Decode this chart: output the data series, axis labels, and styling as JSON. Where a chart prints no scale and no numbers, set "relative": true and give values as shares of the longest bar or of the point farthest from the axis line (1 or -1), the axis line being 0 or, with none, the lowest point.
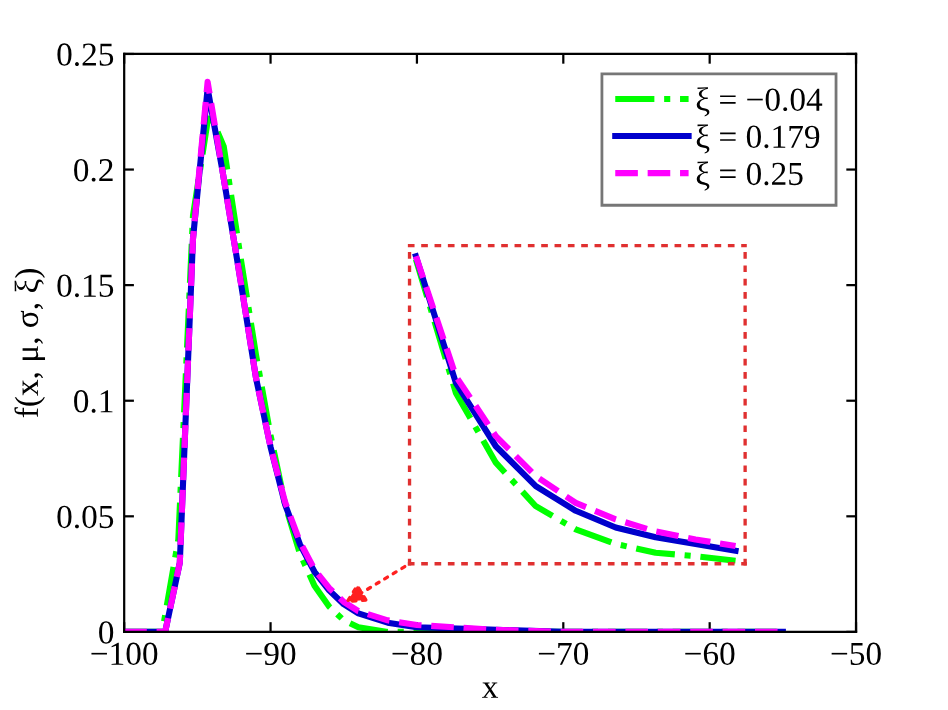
{
  "chart_data": [
    {
      "type": "line",
      "xlabel": "x",
      "ylabel": "f(x, μ, σ, ξ)",
      "xlim": [
        -100,
        -50
      ],
      "xticks": [
        -100,
        -90,
        -80,
        -70,
        -60,
        -50
      ],
      "ylim": [
        0,
        0.25
      ],
      "yticks": [
        0,
        0.05,
        0.1,
        0.15,
        0.2,
        0.25
      ],
      "grid": false,
      "legend": "top right",
      "marker": "none",
      "series": [
        {
          "name": "ξ = −0.04",
          "color": "#00ff00",
          "line_style": "dashdot",
          "x": [
            -100,
            -97.4,
            -96.3,
            -95.3,
            -94.2,
            -93.2,
            -92,
            -91,
            -90,
            -89,
            -88,
            -87,
            -86,
            -85,
            -84,
            -82,
            -80,
            -70,
            -55
          ],
          "values": [
            0,
            0,
            0.04,
            0.18,
            0.225,
            0.21,
            0.16,
            0.12,
            0.085,
            0.055,
            0.034,
            0.02,
            0.011,
            0.005,
            0.002,
            0,
            0,
            0,
            0
          ]
        },
        {
          "name": "ξ = 0.179",
          "color": "#0000cc",
          "line_style": "solid",
          "x": [
            -100,
            -97.2,
            -96.2,
            -95.3,
            -94.3,
            -93.3,
            -92,
            -91,
            -90,
            -89,
            -88,
            -87,
            -86,
            -85,
            -84,
            -82,
            -80,
            -75,
            -70,
            -55
          ],
          "values": [
            0,
            0,
            0.03,
            0.17,
            0.235,
            0.2,
            0.15,
            0.11,
            0.08,
            0.055,
            0.038,
            0.026,
            0.018,
            0.012,
            0.008,
            0.004,
            0.002,
            0.001,
            0,
            0
          ]
        },
        {
          "name": "ξ = 0.25",
          "color": "#ff00ff",
          "line_style": "dashed",
          "x": [
            -100,
            -97.2,
            -96.2,
            -95.3,
            -94.3,
            -93.3,
            -92,
            -91,
            -90,
            -89,
            -88,
            -87,
            -86,
            -85,
            -84,
            -82,
            -80,
            -75,
            -70,
            -55
          ],
          "values": [
            0,
            0,
            0.03,
            0.17,
            0.238,
            0.2,
            0.15,
            0.11,
            0.08,
            0.056,
            0.039,
            0.027,
            0.019,
            0.013,
            0.009,
            0.005,
            0.003,
            0.001,
            0,
            0
          ]
        }
      ]
    },
    {
      "type": "line",
      "relative": true,
      "legend": false,
      "categories": [
        null,
        null,
        null,
        null,
        null,
        null,
        null,
        null,
        null
      ],
      "series": [
        {
          "color": "#00ff00",
          "line_style": "dashdot",
          "values": [
            0.99,
            0.551,
            0.322,
            0.179,
            0.103,
            0.055,
            0.026,
            0.015,
            0
          ]
        },
        {
          "color": "#0000cc",
          "line_style": "solid",
          "values": [
            1,
            0.584,
            0.376,
            0.245,
            0.164,
            0.109,
            0.077,
            0.055,
            0.033
          ]
        },
        {
          "color": "#ff00ff",
          "line_style": "dashed",
          "values": [
            1,
            0.606,
            0.409,
            0.278,
            0.19,
            0.136,
            0.096,
            0.07,
            0.048
          ]
        }
      ]
    }
  ]
}
